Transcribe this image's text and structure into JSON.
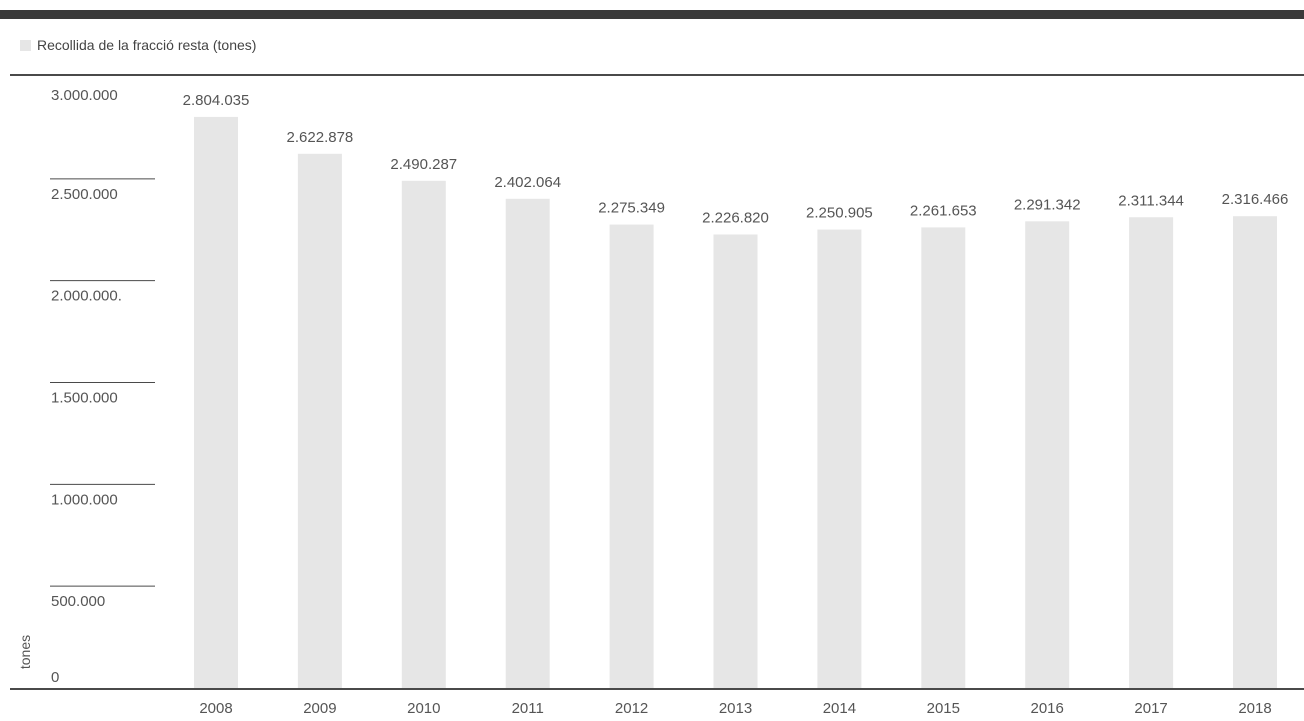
{
  "legend": {
    "label": "Recollida de la fracció resta (tones)",
    "color": "#e6e6e6"
  },
  "colors": {
    "bar": "#e6e6e6",
    "text": "#555555",
    "axis": "#4a4a4a",
    "topbar": "#3a3a3a"
  },
  "chart_data": {
    "type": "bar",
    "categories": [
      "2008",
      "2009",
      "2010",
      "2011",
      "2012",
      "2013",
      "2014",
      "2015",
      "2016",
      "2017",
      "2018"
    ],
    "series": [
      {
        "name": "Recollida de la fracció resta (tones)",
        "values": [
          2804035,
          2622878,
          2490287,
          2402064,
          2275349,
          2226820,
          2250905,
          2261653,
          2291342,
          2311344,
          2316466
        ],
        "labels": [
          "2.804.035",
          "2.622.878",
          "2.490.287",
          "2.402.064",
          "2.275.349",
          "2.226.820",
          "2.250.905",
          "2.261.653",
          "2.291.342",
          "2.311.344",
          "2.316.466"
        ]
      }
    ],
    "yticks": [
      0,
      500000,
      1000000,
      1500000,
      2000000,
      2500000,
      3000000
    ],
    "ytick_labels": [
      "0",
      "500.000",
      "1.000.000",
      "1.500.000",
      "2.000.000.",
      "2.500.000",
      "3.000.000"
    ],
    "ylabel": "tones",
    "xlabel": "",
    "ylim": [
      0,
      3000000
    ],
    "legend_position": "top-left",
    "grid": false
  }
}
